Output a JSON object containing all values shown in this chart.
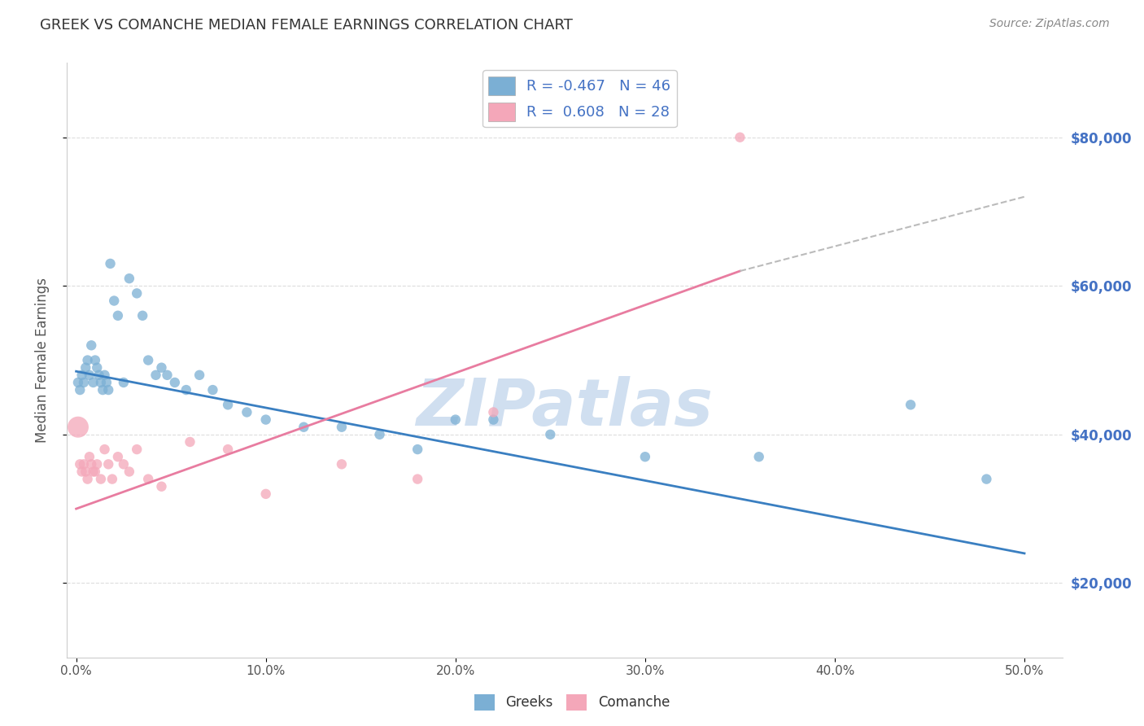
{
  "title": "GREEK VS COMANCHE MEDIAN FEMALE EARNINGS CORRELATION CHART",
  "source": "Source: ZipAtlas.com",
  "ylabel": "Median Female Earnings",
  "xlabel_ticks": [
    "0.0%",
    "10.0%",
    "20.0%",
    "30.0%",
    "40.0%",
    "50.0%"
  ],
  "xlabel_vals": [
    0.0,
    0.1,
    0.2,
    0.3,
    0.4,
    0.5
  ],
  "ylabel_ticks": [
    "$20,000",
    "$40,000",
    "$60,000",
    "$80,000"
  ],
  "ylabel_vals": [
    20000,
    40000,
    60000,
    80000
  ],
  "xlim": [
    -0.005,
    0.52
  ],
  "ylim": [
    10000,
    90000
  ],
  "greek_R": -0.467,
  "greek_N": 46,
  "comanche_R": 0.608,
  "comanche_N": 28,
  "greek_color": "#7BAFD4",
  "comanche_color": "#F4A7B9",
  "greek_line_color": "#3A7FC1",
  "comanche_line_color": "#E87CA0",
  "dashed_line_color": "#BBBBBB",
  "title_color": "#333333",
  "axis_label_color": "#555555",
  "right_tick_color": "#4472C4",
  "legend_text_color": "#4472C4",
  "watermark_color": "#D0DFF0",
  "background_color": "#FFFFFF",
  "grid_color": "#DDDDDD",
  "greek_x": [
    0.001,
    0.002,
    0.003,
    0.004,
    0.005,
    0.006,
    0.007,
    0.008,
    0.009,
    0.01,
    0.011,
    0.012,
    0.013,
    0.014,
    0.015,
    0.016,
    0.017,
    0.018,
    0.02,
    0.022,
    0.025,
    0.028,
    0.032,
    0.035,
    0.038,
    0.042,
    0.045,
    0.048,
    0.052,
    0.058,
    0.065,
    0.072,
    0.08,
    0.09,
    0.1,
    0.12,
    0.14,
    0.16,
    0.18,
    0.2,
    0.22,
    0.25,
    0.3,
    0.36,
    0.44,
    0.48
  ],
  "greek_y": [
    47000,
    46000,
    48000,
    47000,
    49000,
    50000,
    48000,
    52000,
    47000,
    50000,
    49000,
    48000,
    47000,
    46000,
    48000,
    47000,
    46000,
    63000,
    58000,
    56000,
    47000,
    61000,
    59000,
    56000,
    50000,
    48000,
    49000,
    48000,
    47000,
    46000,
    48000,
    46000,
    44000,
    43000,
    42000,
    41000,
    41000,
    40000,
    38000,
    42000,
    42000,
    40000,
    37000,
    37000,
    44000,
    34000
  ],
  "comanche_x": [
    0.001,
    0.002,
    0.003,
    0.004,
    0.005,
    0.006,
    0.007,
    0.008,
    0.009,
    0.01,
    0.011,
    0.013,
    0.015,
    0.017,
    0.019,
    0.022,
    0.025,
    0.028,
    0.032,
    0.038,
    0.045,
    0.06,
    0.08,
    0.1,
    0.14,
    0.18,
    0.22,
    0.35
  ],
  "comanche_y": [
    41000,
    36000,
    35000,
    36000,
    35000,
    34000,
    37000,
    36000,
    35000,
    35000,
    36000,
    34000,
    38000,
    36000,
    34000,
    37000,
    36000,
    35000,
    38000,
    34000,
    33000,
    39000,
    38000,
    32000,
    36000,
    34000,
    43000,
    80000
  ],
  "comanche_large_idx": 0,
  "greek_line_x0": 0.0,
  "greek_line_x1": 0.5,
  "greek_line_y0": 48500,
  "greek_line_y1": 24000,
  "comanche_line_x0": 0.0,
  "comanche_line_x1": 0.35,
  "comanche_line_x1_dash": 0.5,
  "comanche_line_y0": 30000,
  "comanche_line_y1": 62000,
  "comanche_line_y1_dash": 72000
}
